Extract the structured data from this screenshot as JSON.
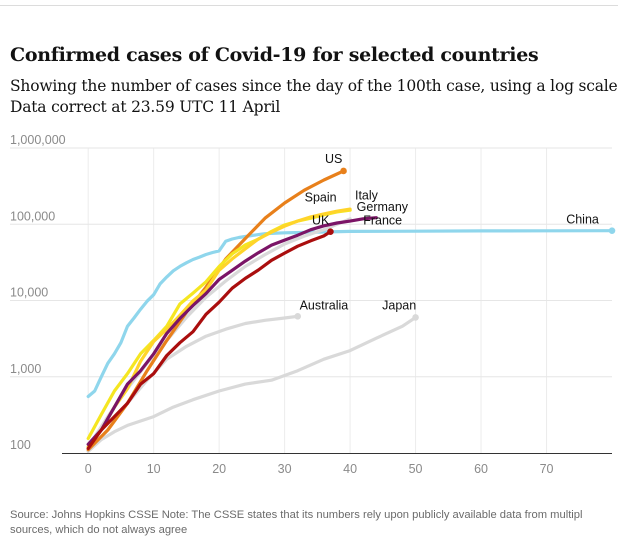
{
  "header": {
    "title": "Confirmed cases of Covid-19 for selected countries",
    "subtitle_line1": "Showing the number of cases since the day of the 100th case, using a log scale.",
    "subtitle_line2": "Data correct at 23.59 UTC 11 April"
  },
  "footer": {
    "source_line1": "Source: Johns Hopkins CSSE Note: The CSSE states that its numbers rely upon publicly available data from multipl",
    "source_line2": "sources, which do not always agree"
  },
  "chart_data": {
    "type": "line",
    "title": "Confirmed cases of Covid-19 for selected countries",
    "xlabel": "",
    "ylabel": "",
    "log_scale_y": true,
    "xlim": [
      -4,
      80
    ],
    "ylim": [
      100,
      1000000
    ],
    "grid": true,
    "legend": "direct labels at line ends",
    "x_ticks": [
      0,
      10,
      20,
      30,
      40,
      50,
      60,
      70
    ],
    "y_ticks": [
      {
        "value": 100,
        "label": "100"
      },
      {
        "value": 1000,
        "label": "1,000"
      },
      {
        "value": 10000,
        "label": "10,000"
      },
      {
        "value": 100000,
        "label": "100,000"
      },
      {
        "value": 1000000,
        "label": "1,000,000"
      }
    ],
    "series": [
      {
        "name": "China",
        "color": "#8fd6ec",
        "end_marker": true,
        "points": [
          [
            0,
            550
          ],
          [
            1,
            650
          ],
          [
            2,
            1000
          ],
          [
            3,
            1500
          ],
          [
            4,
            2000
          ],
          [
            5,
            2800
          ],
          [
            6,
            4600
          ],
          [
            7,
            5900
          ],
          [
            8,
            7700
          ],
          [
            9,
            9800
          ],
          [
            10,
            11900
          ],
          [
            11,
            16600
          ],
          [
            12,
            20400
          ],
          [
            13,
            24500
          ],
          [
            14,
            28000
          ],
          [
            15,
            31200
          ],
          [
            16,
            34500
          ],
          [
            17,
            37100
          ],
          [
            18,
            40100
          ],
          [
            19,
            42600
          ],
          [
            20,
            44700
          ],
          [
            21,
            59800
          ],
          [
            22,
            64000
          ],
          [
            23,
            67100
          ],
          [
            24,
            69000
          ],
          [
            25,
            71200
          ],
          [
            26,
            73200
          ],
          [
            27,
            75100
          ],
          [
            28,
            75900
          ],
          [
            30,
            77200
          ],
          [
            35,
            78900
          ],
          [
            40,
            80500
          ],
          [
            50,
            81000
          ],
          [
            60,
            81700
          ],
          [
            70,
            82100
          ],
          [
            80,
            82400
          ]
        ]
      },
      {
        "name": "Australia",
        "color": "#d9d9d9",
        "end_marker": true,
        "points": [
          [
            0,
            107
          ],
          [
            3,
            200
          ],
          [
            6,
            450
          ],
          [
            9,
            900
          ],
          [
            12,
            1700
          ],
          [
            15,
            2500
          ],
          [
            18,
            3400
          ],
          [
            21,
            4200
          ],
          [
            24,
            5000
          ],
          [
            27,
            5500
          ],
          [
            30,
            5900
          ],
          [
            32,
            6200
          ]
        ]
      },
      {
        "name": "Japan",
        "color": "#d9d9d9",
        "end_marker": true,
        "points": [
          [
            0,
            105
          ],
          [
            2,
            150
          ],
          [
            4,
            190
          ],
          [
            6,
            230
          ],
          [
            10,
            300
          ],
          [
            13,
            400
          ],
          [
            16,
            500
          ],
          [
            20,
            650
          ],
          [
            24,
            800
          ],
          [
            28,
            900
          ],
          [
            32,
            1200
          ],
          [
            36,
            1700
          ],
          [
            40,
            2200
          ],
          [
            44,
            3200
          ],
          [
            48,
            4600
          ],
          [
            50,
            6000
          ]
        ]
      },
      {
        "name": "",
        "color": "#d9d9d9",
        "end_marker": false,
        "points": [
          [
            0,
            120
          ],
          [
            3,
            300
          ],
          [
            6,
            700
          ],
          [
            9,
            1500
          ],
          [
            12,
            3000
          ],
          [
            15,
            6000
          ],
          [
            18,
            11000
          ],
          [
            21,
            18000
          ],
          [
            24,
            28000
          ],
          [
            27,
            40000
          ],
          [
            30,
            55000
          ],
          [
            33,
            70000
          ],
          [
            36,
            85000
          ],
          [
            38,
            100000
          ],
          [
            40,
            118000
          ]
        ]
      },
      {
        "name": "US",
        "color": "#e8801b",
        "end_marker": true,
        "points": [
          [
            0,
            110
          ],
          [
            3,
            200
          ],
          [
            6,
            450
          ],
          [
            9,
            1200
          ],
          [
            12,
            3000
          ],
          [
            15,
            7000
          ],
          [
            18,
            15000
          ],
          [
            21,
            35000
          ],
          [
            24,
            65000
          ],
          [
            27,
            120000
          ],
          [
            30,
            190000
          ],
          [
            33,
            280000
          ],
          [
            36,
            380000
          ],
          [
            39,
            500000
          ]
        ]
      },
      {
        "name": "Italy",
        "color": "#f5e621",
        "end_marker": false,
        "points": [
          [
            0,
            155
          ],
          [
            2,
            320
          ],
          [
            4,
            650
          ],
          [
            6,
            1100
          ],
          [
            8,
            2000
          ],
          [
            10,
            3000
          ],
          [
            12,
            4600
          ],
          [
            14,
            9000
          ],
          [
            16,
            12500
          ],
          [
            18,
            17600
          ],
          [
            20,
            27900
          ],
          [
            22,
            41000
          ],
          [
            24,
            53500
          ],
          [
            26,
            63900
          ],
          [
            28,
            80500
          ],
          [
            30,
            97700
          ],
          [
            32,
            110000
          ],
          [
            34,
            120000
          ],
          [
            36,
            133000
          ],
          [
            38,
            145000
          ],
          [
            40,
            153000
          ]
        ]
      },
      {
        "name": "Spain",
        "color": "#ffd42a",
        "end_marker": false,
        "points": [
          [
            0,
            120
          ],
          [
            2,
            200
          ],
          [
            4,
            400
          ],
          [
            6,
            700
          ],
          [
            8,
            1600
          ],
          [
            10,
            2900
          ],
          [
            12,
            4200
          ],
          [
            14,
            6400
          ],
          [
            16,
            9900
          ],
          [
            18,
            13700
          ],
          [
            20,
            24900
          ],
          [
            22,
            35100
          ],
          [
            24,
            47600
          ],
          [
            26,
            64100
          ],
          [
            28,
            78700
          ],
          [
            30,
            94400
          ],
          [
            32,
            110200
          ],
          [
            34,
            124700
          ],
          [
            36,
            136700
          ],
          [
            38,
            148200
          ],
          [
            40,
            158000
          ]
        ]
      },
      {
        "name": "Germany",
        "color": "#7b1466",
        "end_marker": false,
        "points": [
          [
            0,
            130
          ],
          [
            2,
            200
          ],
          [
            4,
            400
          ],
          [
            6,
            800
          ],
          [
            8,
            1200
          ],
          [
            10,
            2000
          ],
          [
            12,
            3700
          ],
          [
            14,
            5800
          ],
          [
            16,
            8600
          ],
          [
            18,
            12300
          ],
          [
            20,
            18900
          ],
          [
            22,
            24900
          ],
          [
            24,
            32900
          ],
          [
            26,
            42300
          ],
          [
            28,
            53300
          ],
          [
            30,
            61900
          ],
          [
            32,
            71800
          ],
          [
            34,
            84800
          ],
          [
            36,
            95400
          ],
          [
            38,
            104000
          ],
          [
            40,
            110000
          ],
          [
            42,
            118000
          ],
          [
            44,
            122000
          ]
        ]
      },
      {
        "name": "UK",
        "color": "#aa0e0e",
        "end_marker": true,
        "points": [
          [
            0,
            115
          ],
          [
            2,
            200
          ],
          [
            4,
            300
          ],
          [
            6,
            450
          ],
          [
            8,
            800
          ],
          [
            10,
            1100
          ],
          [
            12,
            1900
          ],
          [
            14,
            2800
          ],
          [
            16,
            3900
          ],
          [
            18,
            6600
          ],
          [
            20,
            9500
          ],
          [
            22,
            14500
          ],
          [
            24,
            19500
          ],
          [
            26,
            25100
          ],
          [
            28,
            33700
          ],
          [
            30,
            41900
          ],
          [
            32,
            51600
          ],
          [
            34,
            60700
          ],
          [
            36,
            70300
          ],
          [
            37,
            79900
          ]
        ]
      }
    ],
    "labels": [
      {
        "text": "US",
        "x": 37.5,
        "y": 640000,
        "anchor": "middle"
      },
      {
        "text": "Spain",
        "x": 35.5,
        "y": 200000,
        "anchor": "middle"
      },
      {
        "text": "Italy",
        "x": 42.5,
        "y": 212000,
        "anchor": "middle"
      },
      {
        "text": "Germany",
        "x": 41,
        "y": 150000,
        "anchor": "start"
      },
      {
        "text": "France",
        "x": 42,
        "y": 100000,
        "anchor": "start"
      },
      {
        "text": "UK",
        "x": 35.5,
        "y": 100000,
        "anchor": "middle"
      },
      {
        "text": "China",
        "x": 75.5,
        "y": 102000,
        "anchor": "middle"
      },
      {
        "text": "Australia",
        "x": 36,
        "y": 7600,
        "anchor": "middle"
      },
      {
        "text": "Japan",
        "x": 47.5,
        "y": 7600,
        "anchor": "middle"
      }
    ]
  }
}
